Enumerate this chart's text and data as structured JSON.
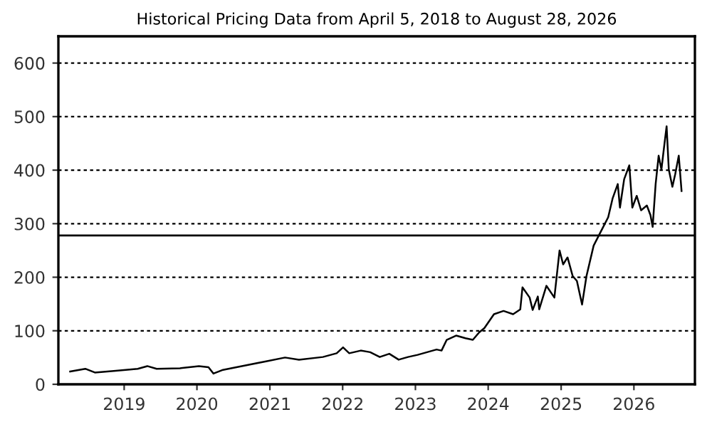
{
  "chart_data": {
    "type": "line",
    "title": "Historical Pricing Data from April 5, 2018 to August 28, 2026",
    "x": [
      "2018-04-05",
      "2018-06-20",
      "2018-08-07",
      "2018-11-10",
      "2019-03-10",
      "2019-04-27",
      "2019-06-13",
      "2019-10-08",
      "2020-01-11",
      "2020-02-28",
      "2020-03-24",
      "2020-05-11",
      "2020-09-09",
      "2020-12-13",
      "2021-03-18",
      "2021-05-27",
      "2021-09-24",
      "2021-12-02",
      "2022-01-03",
      "2022-02-03",
      "2022-04-02",
      "2022-05-19",
      "2022-07-06",
      "2022-08-23",
      "2022-10-09",
      "2022-11-25",
      "2023-01-12",
      "2023-04-17",
      "2023-05-12",
      "2023-06-07",
      "2023-07-24",
      "2023-09-09",
      "2023-10-16",
      "2023-11-17",
      "2023-12-13",
      "2024-01-30",
      "2024-03-18",
      "2024-05-05",
      "2024-06-10",
      "2024-06-21",
      "2024-07-27",
      "2024-08-11",
      "2024-09-06",
      "2024-09-13",
      "2024-10-19",
      "2024-11-28",
      "2024-12-24",
      "2025-01-11",
      "2025-02-02",
      "2025-02-28",
      "2025-03-21",
      "2025-04-16",
      "2025-05-08",
      "2025-06-13",
      "2025-07-20",
      "2025-08-25",
      "2025-09-16",
      "2025-10-12",
      "2025-10-23",
      "2025-11-13",
      "2025-12-09",
      "2025-12-24",
      "2026-01-15",
      "2026-02-06",
      "2026-03-07",
      "2026-03-25",
      "2026-04-05",
      "2026-04-20",
      "2026-05-05",
      "2026-05-19",
      "2026-05-30",
      "2026-06-14",
      "2026-06-25",
      "2026-07-13",
      "2026-07-27",
      "2026-08-14",
      "2026-08-28"
    ],
    "series": [
      {
        "color": "#000000",
        "values": [
          24,
          29,
          22,
          25,
          29,
          34,
          29,
          30,
          34,
          32,
          20,
          27,
          36,
          43,
          50,
          46,
          51,
          58,
          69,
          58,
          63,
          60,
          51,
          57,
          46,
          51,
          55,
          65,
          63,
          83,
          91,
          86,
          83,
          97,
          105,
          131,
          137,
          131,
          140,
          181,
          162,
          139,
          164,
          140,
          184,
          162,
          250,
          224,
          237,
          202,
          193,
          149,
          202,
          259,
          286,
          312,
          347,
          374,
          330,
          383,
          409,
          330,
          352,
          325,
          334,
          316,
          294,
          374,
          427,
          401,
          436,
          482,
          401,
          369,
          392,
          427,
          361
        ]
      }
    ],
    "xlim": [
      "2018-02-05",
      "2026-11-03"
    ],
    "xticks": [
      {
        "value": "2019-01-01",
        "label": "2019"
      },
      {
        "value": "2020-01-01",
        "label": "2020"
      },
      {
        "value": "2021-01-01",
        "label": "2021"
      },
      {
        "value": "2022-01-01",
        "label": "2022"
      },
      {
        "value": "2023-01-01",
        "label": "2023"
      },
      {
        "value": "2024-01-01",
        "label": "2024"
      },
      {
        "value": "2025-01-01",
        "label": "2025"
      },
      {
        "value": "2026-01-01",
        "label": "2026"
      }
    ],
    "ylim": [
      0,
      650
    ],
    "yticks": [
      0,
      100,
      200,
      300,
      400,
      500,
      600
    ],
    "grid": "y",
    "legend": false,
    "marker": "none",
    "line_style": "solid",
    "ref_lines": [
      {
        "axis": "y",
        "value": 278,
        "color": "#000000",
        "line_style": "solid"
      }
    ]
  }
}
